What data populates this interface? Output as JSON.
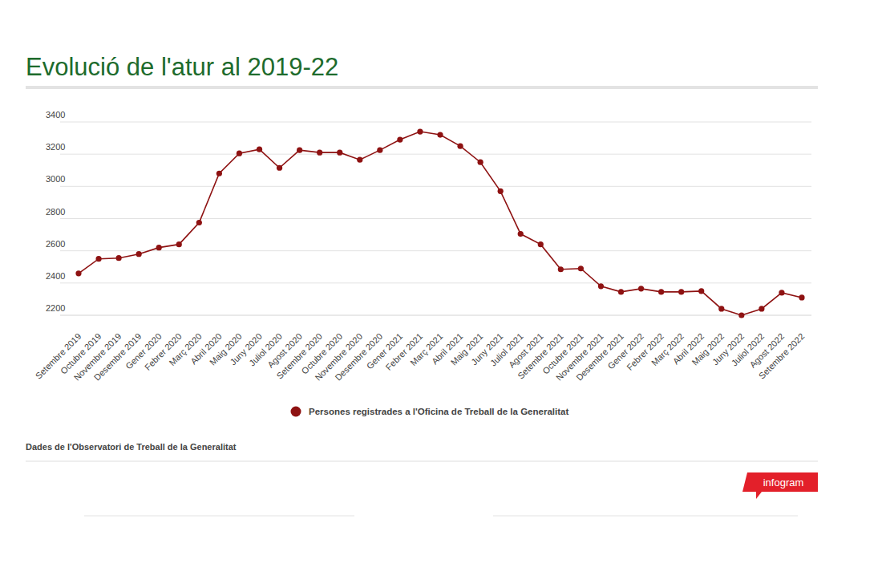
{
  "chart_data": {
    "type": "line",
    "title": "Evolució de l'atur al 2019-22",
    "categories": [
      "Setembre 2019",
      "Octubre 2019",
      "Novembre 2019",
      "Desembre 2019",
      "Gener 2020",
      "Febrer 2020",
      "Març 2020",
      "Abril 2020",
      "Maig 2020",
      "Juny 2020",
      "Juliol 2020",
      "Agost 2020",
      "Setembre 2020",
      "Octubre 2020",
      "Novembre 2020",
      "Desembre 2020",
      "Gener 2021",
      "Febrer 2021",
      "Març 2021",
      "Abril 2021",
      "Maig 2021",
      "Juny 2021",
      "Juliol 2021",
      "Agost 2021",
      "Setembre 2021",
      "Octubre 2021",
      "Novembre 2021",
      "Desembre 2021",
      "Gener 2022",
      "Febrer 2022",
      "Març 2022",
      "Abril 2022",
      "Maig 2022",
      "Juny 2022",
      "Juliol 2022",
      "Agost 2022",
      "Setembre 2022"
    ],
    "series": [
      {
        "name": "Persones registrades a l'Oficina de Treball de la Generalitat",
        "color": "#8e1212",
        "marker": "circle",
        "values": [
          2460,
          2550,
          2555,
          2580,
          2620,
          2640,
          2775,
          3080,
          3205,
          3230,
          3115,
          3225,
          3210,
          3210,
          3165,
          3225,
          3290,
          3340,
          3320,
          3250,
          3150,
          2970,
          2705,
          2640,
          2485,
          2490,
          2380,
          2345,
          2365,
          2345,
          2345,
          2350,
          2240,
          2200,
          2240,
          2340,
          2310
        ]
      }
    ],
    "ylim": [
      2200,
      3400
    ],
    "yticks": [
      2200,
      2400,
      2600,
      2800,
      3000,
      3200,
      3400
    ],
    "grid": true,
    "legend": "bottom"
  },
  "footer": {
    "source": "Dades de l'Observatori de Treball de la Generalitat",
    "badge": "infogram"
  }
}
